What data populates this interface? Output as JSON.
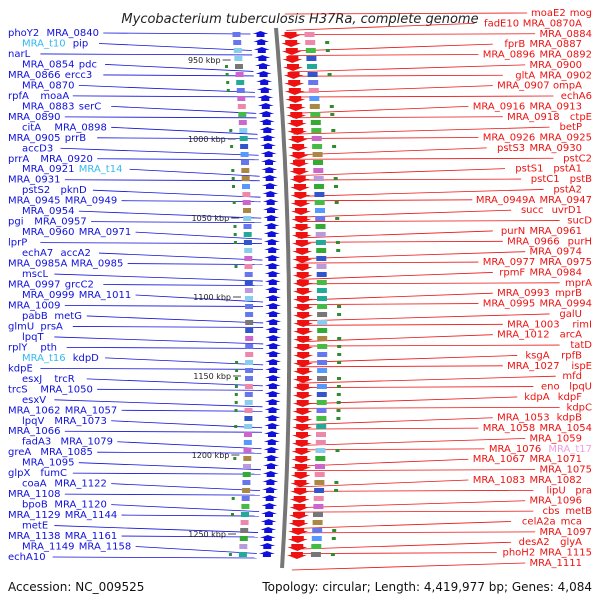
{
  "title": "Mycobacterium tuberculosis H37Ra, complete genome",
  "accession": "Accession: NC_009525",
  "summary": "Topology: circular; Length: 4,419,977 bp; Genes: 4,084",
  "colors": {
    "forward": "#1010dd",
    "reverse": "#ee1111",
    "trna": "#33bbee",
    "trna_reverse": "#f0a0e0",
    "backbone": "#777777",
    "tick": "#2e8b2e"
  },
  "scale_ticks": [
    {
      "label": "950 kbp"
    },
    {
      "label": "1000 kbp"
    },
    {
      "label": "1050 kbp"
    },
    {
      "label": "1100 kbp"
    },
    {
      "label": "1150 kbp"
    },
    {
      "label": "1200 kbp"
    },
    {
      "label": "1250 kbp"
    }
  ],
  "left_labels": [
    {
      "text": "phoY2"
    },
    {
      "text": "MRA_0840"
    },
    {
      "text": "MRA_t10",
      "kind": "trna"
    },
    {
      "text": "pip"
    },
    {
      "text": "narL"
    },
    {
      "text": "MRA_0854"
    },
    {
      "text": "pdc"
    },
    {
      "text": "MRA_0866"
    },
    {
      "text": "ercc3"
    },
    {
      "text": "MRA_0870"
    },
    {
      "text": "rpfA"
    },
    {
      "text": "moaA"
    },
    {
      "text": "MRA_0883"
    },
    {
      "text": "serC"
    },
    {
      "text": "MRA_0890"
    },
    {
      "text": "citA"
    },
    {
      "text": "MRA_0898"
    },
    {
      "text": "MRA_0905"
    },
    {
      "text": "prrB"
    },
    {
      "text": "accD3"
    },
    {
      "text": "prrA"
    },
    {
      "text": "MRA_0920"
    },
    {
      "text": "MRA_0921"
    },
    {
      "text": "MRA_t14",
      "kind": "trna"
    },
    {
      "text": "MRA_0931"
    },
    {
      "text": "pstS2"
    },
    {
      "text": "pknD"
    },
    {
      "text": "MRA_0945"
    },
    {
      "text": "MRA_0949"
    },
    {
      "text": "MRA_0954"
    },
    {
      "text": "pgi"
    },
    {
      "text": "MRA_0957"
    },
    {
      "text": "MRA_0960"
    },
    {
      "text": "MRA_0971"
    },
    {
      "text": "lprP"
    },
    {
      "text": "echA7"
    },
    {
      "text": "accA2"
    },
    {
      "text": "MRA_0985A"
    },
    {
      "text": "MRA_0985"
    },
    {
      "text": "mscL"
    },
    {
      "text": "MRA_0997"
    },
    {
      "text": "grcC2"
    },
    {
      "text": "MRA_0999"
    },
    {
      "text": "MRA_1011"
    },
    {
      "text": "MRA_1009"
    },
    {
      "text": "pabB"
    },
    {
      "text": "metG"
    },
    {
      "text": "glmU"
    },
    {
      "text": "prsA"
    },
    {
      "text": "lpqT"
    },
    {
      "text": "rplY"
    },
    {
      "text": "pth"
    },
    {
      "text": "MRA_t16",
      "kind": "trna"
    },
    {
      "text": "kdpD"
    },
    {
      "text": "kdpE"
    },
    {
      "text": "esxJ"
    },
    {
      "text": "trcR"
    },
    {
      "text": "trcS"
    },
    {
      "text": "MRA_1050"
    },
    {
      "text": "esxV"
    },
    {
      "text": "MRA_1062"
    },
    {
      "text": "MRA_1057"
    },
    {
      "text": "lpqV"
    },
    {
      "text": "MRA_1073"
    },
    {
      "text": "MRA_1066"
    },
    {
      "text": "fadA3"
    },
    {
      "text": "MRA_1079"
    },
    {
      "text": "greA"
    },
    {
      "text": "MRA_1085"
    },
    {
      "text": "MRA_1095"
    },
    {
      "text": "glpX"
    },
    {
      "text": "fumC"
    },
    {
      "text": "coaA"
    },
    {
      "text": "MRA_1122"
    },
    {
      "text": "MRA_1108"
    },
    {
      "text": "bpoB"
    },
    {
      "text": "MRA_1120"
    },
    {
      "text": "MRA_1129"
    },
    {
      "text": "MRA_1144"
    },
    {
      "text": "metE"
    },
    {
      "text": "MRA_1138"
    },
    {
      "text": "MRA_1161"
    },
    {
      "text": "MRA_1149"
    },
    {
      "text": "MRA_1158"
    },
    {
      "text": "echA10"
    }
  ],
  "right_labels": [
    {
      "text": "mog"
    },
    {
      "text": "moaE2"
    },
    {
      "text": "MRA_0870A"
    },
    {
      "text": "fadE10"
    },
    {
      "text": "MRA_0884"
    },
    {
      "text": "MRA_0887"
    },
    {
      "text": "fprB"
    },
    {
      "text": "MRA_0892"
    },
    {
      "text": "MRA_0896"
    },
    {
      "text": "MRA_0900"
    },
    {
      "text": "MRA_0902"
    },
    {
      "text": "gltA"
    },
    {
      "text": "ompA"
    },
    {
      "text": "MRA_0907"
    },
    {
      "text": "echA6"
    },
    {
      "text": "MRA_0913"
    },
    {
      "text": "MRA_0916"
    },
    {
      "text": "ctpE"
    },
    {
      "text": "MRA_0918"
    },
    {
      "text": "betP"
    },
    {
      "text": "MRA_0925"
    },
    {
      "text": "MRA_0926"
    },
    {
      "text": "MRA_0930"
    },
    {
      "text": "pstS3"
    },
    {
      "text": "pstC2"
    },
    {
      "text": "pstA1"
    },
    {
      "text": "pstS1"
    },
    {
      "text": "pstB"
    },
    {
      "text": "pstC1"
    },
    {
      "text": "pstA2"
    },
    {
      "text": "MRA_0947"
    },
    {
      "text": "MRA_0949A"
    },
    {
      "text": "uvrD1"
    },
    {
      "text": "succ"
    },
    {
      "text": "sucD"
    },
    {
      "text": "MRA_0961"
    },
    {
      "text": "purN"
    },
    {
      "text": "purH"
    },
    {
      "text": "MRA_0966"
    },
    {
      "text": "MRA_0974"
    },
    {
      "text": "MRA_0975"
    },
    {
      "text": "MRA_0977"
    },
    {
      "text": "MRA_0984"
    },
    {
      "text": "rpmF"
    },
    {
      "text": "mprA"
    },
    {
      "text": "mprB"
    },
    {
      "text": "MRA_0993"
    },
    {
      "text": "MRA_0994"
    },
    {
      "text": "MRA_0995"
    },
    {
      "text": "galU"
    },
    {
      "text": "rimI"
    },
    {
      "text": "MRA_1003"
    },
    {
      "text": "arcA"
    },
    {
      "text": "MRA_1012"
    },
    {
      "text": "tatD"
    },
    {
      "text": "rpfB"
    },
    {
      "text": "ksgA"
    },
    {
      "text": "ispE"
    },
    {
      "text": "MRA_1027"
    },
    {
      "text": "mfd"
    },
    {
      "text": "lpqU"
    },
    {
      "text": "eno"
    },
    {
      "text": "kdpF"
    },
    {
      "text": "kdpA"
    },
    {
      "text": "kdpC"
    },
    {
      "text": "kdpB"
    },
    {
      "text": "MRA_1053"
    },
    {
      "text": "MRA_1054"
    },
    {
      "text": "MRA_1058"
    },
    {
      "text": "MRA_1059"
    },
    {
      "text": "MRA_t17",
      "kind": "trna_reverse"
    },
    {
      "text": "MRA_1076"
    },
    {
      "text": "MRA_1071"
    },
    {
      "text": "MRA_1067"
    },
    {
      "text": "MRA_1075"
    },
    {
      "text": "MRA_1082"
    },
    {
      "text": "MRA_1083"
    },
    {
      "text": "pra"
    },
    {
      "text": "lipU"
    },
    {
      "text": "MRA_1096"
    },
    {
      "text": "metB"
    },
    {
      "text": "cbs"
    },
    {
      "text": "mca"
    },
    {
      "text": "celA2a"
    },
    {
      "text": "MRA_1097"
    },
    {
      "text": "glyA"
    },
    {
      "text": "desA2"
    },
    {
      "text": "MRA_1115"
    },
    {
      "text": "phoH2"
    },
    {
      "text": "MRA_1111"
    }
  ]
}
